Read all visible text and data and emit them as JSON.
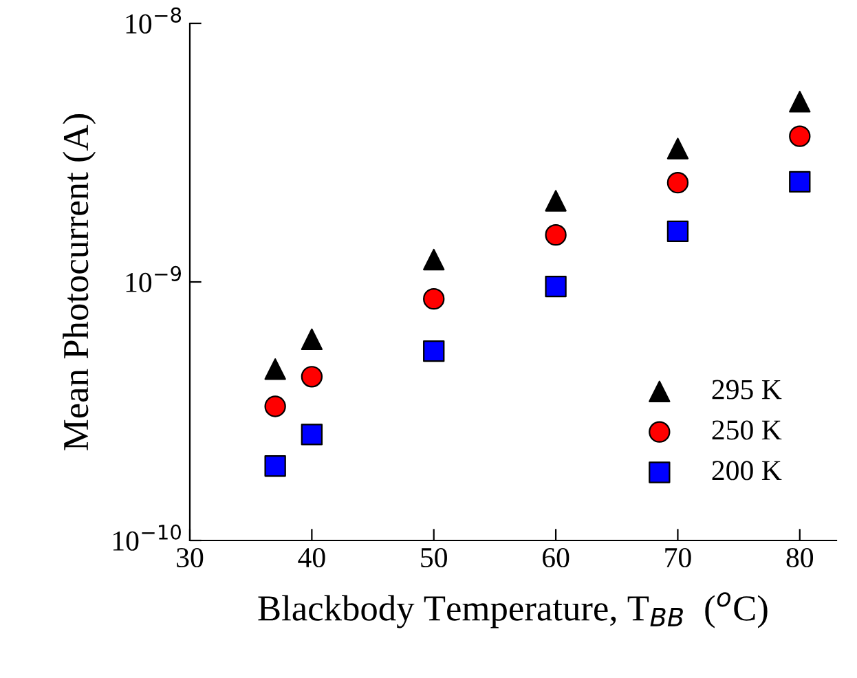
{
  "chart_data": {
    "type": "scatter",
    "xlabel": "Blackbody Temperature, T$_{BB}$  ($^{o}$C)",
    "ylabel": "Mean Photocurrent (A)",
    "x": [
      37,
      40,
      50,
      60,
      70,
      80
    ],
    "series": [
      {
        "name": "295 K",
        "color": "#000000",
        "marker": "triangle",
        "values": [
          4.6e-10,
          6e-10,
          1.22e-09,
          2.06e-09,
          3.28e-09,
          4.98e-09
        ]
      },
      {
        "name": "250 K",
        "color": "#ff0000",
        "marker": "circle",
        "values": [
          3.3e-10,
          4.3e-10,
          8.6e-10,
          1.52e-09,
          2.42e-09,
          3.66e-09
        ]
      },
      {
        "name": "200 K",
        "color": "#0000ff",
        "marker": "square",
        "values": [
          1.94e-10,
          2.57e-10,
          5.4e-10,
          9.6e-10,
          1.57e-09,
          2.44e-09
        ]
      }
    ],
    "log": "y",
    "xlim": [
      30,
      83
    ],
    "xticks": [
      30,
      40,
      50,
      60,
      70,
      80
    ],
    "ylim": [
      1e-10,
      1e-08
    ],
    "yticks": [
      {
        "value": 1e-10,
        "label": "10$^{−10}$"
      },
      {
        "value": 1e-09,
        "label": "10$^{−9}$"
      },
      {
        "value": 1e-08,
        "label": "10$^{−8}$"
      }
    ],
    "legend": "lower right",
    "grid": false
  }
}
